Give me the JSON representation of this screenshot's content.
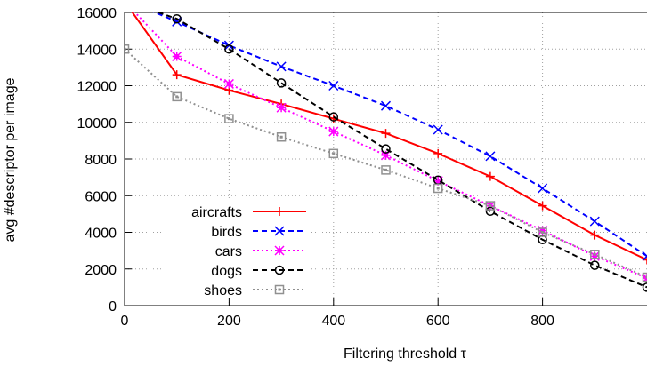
{
  "chart_data": {
    "type": "line",
    "title": "",
    "xlabel": "Filtering threshold τ",
    "ylabel": "avg #descriptor per image",
    "xlim": [
      0,
      1000
    ],
    "ylim": [
      0,
      16000
    ],
    "x_ticks": [
      0,
      200,
      400,
      600,
      800
    ],
    "y_ticks": [
      0,
      2000,
      4000,
      6000,
      8000,
      10000,
      12000,
      14000,
      16000
    ],
    "grid": true,
    "legend_position": "bottom-left",
    "x": [
      0,
      100,
      200,
      300,
      400,
      500,
      600,
      700,
      800,
      900,
      1000
    ],
    "series": [
      {
        "name": "aircrafts",
        "color": "#ff0000",
        "marker": "plus",
        "dash": "solid",
        "values": [
          16600,
          12600,
          11750,
          11000,
          10200,
          9400,
          8300,
          7050,
          5450,
          3850,
          2500
        ]
      },
      {
        "name": "birds",
        "color": "#0000ff",
        "marker": "cross",
        "dash": "dashed",
        "values": [
          16700,
          15500,
          14200,
          13050,
          12000,
          10900,
          9600,
          8150,
          6400,
          4600,
          2700
        ]
      },
      {
        "name": "cars",
        "color": "#ff00ff",
        "marker": "filled-square",
        "dash": "dotted",
        "values": [
          16600,
          13600,
          12100,
          10800,
          9500,
          8200,
          6800,
          5450,
          4100,
          2700,
          1500
        ]
      },
      {
        "name": "dogs",
        "color": "#000000",
        "marker": "circle",
        "dash": "dashed",
        "values": [
          16650,
          15650,
          14000,
          12150,
          10300,
          8550,
          6850,
          5150,
          3600,
          2200,
          1000
        ]
      },
      {
        "name": "shoes",
        "color": "#909090",
        "marker": "open-square",
        "dash": "dotted",
        "values": [
          14000,
          11400,
          10200,
          9200,
          8300,
          7400,
          6400,
          5450,
          4000,
          2800,
          1550
        ]
      }
    ]
  }
}
